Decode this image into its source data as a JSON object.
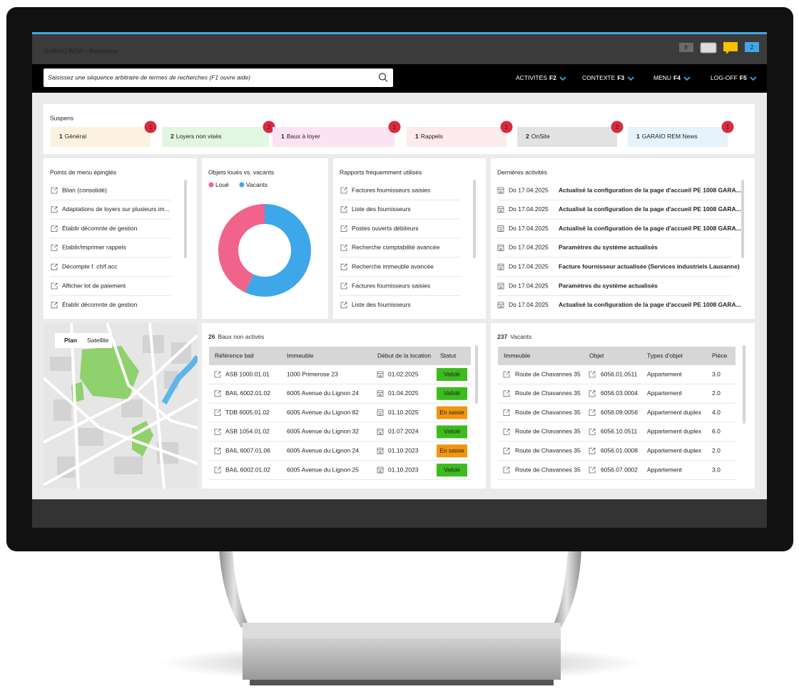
{
  "header": {
    "title": "GARAIO REM – Bienvenue",
    "language": "fr",
    "notifications": "2"
  },
  "search": {
    "placeholder": "Saisissez une séquence arbitraire de termes de recherches (F1 ouvre aide)"
  },
  "menu": [
    {
      "label": "ACTIVITÉS",
      "key": "F2"
    },
    {
      "label": "CONTEXTE",
      "key": "F3"
    },
    {
      "label": "MENU",
      "key": "F4"
    },
    {
      "label": "LOG-OFF",
      "key": "F5"
    }
  ],
  "suspens": {
    "title": "Suspens",
    "items": [
      {
        "count": "1",
        "label": "Général",
        "badge": "1",
        "color": "#fdf2df"
      },
      {
        "count": "2",
        "label": "Loyers non visés",
        "badge": "2",
        "color": "#e2f6e1"
      },
      {
        "count": "1",
        "label": "Baux à loyer",
        "badge": "1",
        "color": "#fce3f2"
      },
      {
        "count": "1",
        "label": "Rappels",
        "badge": "1",
        "color": "#fdeaec"
      },
      {
        "count": "2",
        "label": "OnSite",
        "badge": "2",
        "color": "#e2e2e2"
      },
      {
        "count": "1",
        "label": "GARAIO REM News",
        "badge": "1",
        "color": "#e6f2fc"
      }
    ]
  },
  "pinned": {
    "title": "Points de menu épinglés",
    "items": [
      "Bilan (consolidé)",
      "Adaptations de loyers sur plusieurs im...",
      "Établir décomnte de gestion",
      "Etablir/imprimer rappels",
      "Décompte f. ch/f.acc",
      "Afficher lot de paiement",
      "Établir décomnte de gestion"
    ]
  },
  "chart_data": {
    "type": "donut",
    "title": "Objets loués vs. vacants",
    "categories": [
      "Loué",
      "Vacants"
    ],
    "values": [
      43,
      57
    ],
    "colors": [
      "#f2638b",
      "#3ea7e9"
    ]
  },
  "reports": {
    "title": "Rapports fréquemment utilisés",
    "items": [
      "Factures fournisseurs saisies",
      "Liste des fournisseurs",
      "Postes ouverts débiteurs",
      "Recherche comptabilité avancée",
      "Recherche immeuble avancée",
      "Factures fournisseurs saisies",
      "Liste des fournisseurs"
    ]
  },
  "activities": {
    "title": "Dernières activités",
    "items": [
      {
        "date": "Do 17.04.2025",
        "text": "Actualisé la configuration de la page d'accueil PE 1008 GARA..."
      },
      {
        "date": "Do 17.04.2025",
        "text": "Actualisé la configuration de la page d'accueil PE 1008 GARA..."
      },
      {
        "date": "Do 17.04.2025",
        "text": "Actualisé la configuration de la page d'accueil PE 1008 GARA..."
      },
      {
        "date": "Do 17.04.2025",
        "text": "Paramètres du système actualisés"
      },
      {
        "date": "Do 17.04.2025",
        "text": "Facture fournisseur actualisée (Services industriels Lausanne)"
      },
      {
        "date": "Do 17.04.2025",
        "text": "Paramètres du système actualisés"
      },
      {
        "date": "Do 17.04.2025",
        "text": "Actualisé la configuration de la page d'accueil PE 1008 GARA..."
      }
    ]
  },
  "map": {
    "tabs": [
      "Plan",
      "Satellite"
    ]
  },
  "leases": {
    "count": "26",
    "title": "Baux non activés",
    "columns": [
      "Référence bail",
      "Immeuble",
      "Début de la location",
      "Statut"
    ],
    "rows": [
      {
        "ref": "ASB 1000.01.01",
        "building": "1000 Primerose 23",
        "date": "01.02.2025",
        "status": "Validé",
        "status_color": "#3dbb1f"
      },
      {
        "ref": "BAIL 6002.01.02",
        "building": "6005 Avenue du Lignon 24",
        "date": "01.04.2025",
        "status": "Validé",
        "status_color": "#3dbb1f"
      },
      {
        "ref": "TDB 6005.01.02",
        "building": "6005 Avenue du Lignon 82",
        "date": "01.10.2025",
        "status": "En saisie",
        "status_color": "#f2950f"
      },
      {
        "ref": "ASB 1054.01.02",
        "building": "6005 Avenue du Lignon 32",
        "date": "01.07.2024",
        "status": "Validé",
        "status_color": "#3dbb1f"
      },
      {
        "ref": "BAIL 6007.01.06",
        "building": "6005 Avenue du Lignon 24",
        "date": "01.10.2023",
        "status": "En saisie",
        "status_color": "#f2950f"
      },
      {
        "ref": "BAIL 6002.01.02",
        "building": "6005 Avenue du Lignon 25",
        "date": "01.10.2023",
        "status": "Validé",
        "status_color": "#3dbb1f"
      }
    ]
  },
  "vacants": {
    "count": "237",
    "title": "Vacants",
    "columns": [
      "Immeuble",
      "Objet",
      "Types d'objet",
      "Pièce"
    ],
    "rows": [
      {
        "building": "Route de Chavannes 35",
        "object": "6056.01.0511",
        "type": "Appartement",
        "rooms": "3.0"
      },
      {
        "building": "Route de Chavannes 35",
        "object": "6056.03.0004",
        "type": "Appartement",
        "rooms": "2.0"
      },
      {
        "building": "Route de Chavannes 35",
        "object": "6056.09.0056",
        "type": "Appartement duplex",
        "rooms": "4.0"
      },
      {
        "building": "Route de Chavannes 35",
        "object": "6056.10.0511",
        "type": "Appartement duplex",
        "rooms": "6.0"
      },
      {
        "building": "Route de Chavannes 35",
        "object": "6056.01.0008",
        "type": "Appartement duplex",
        "rooms": "2.0"
      },
      {
        "building": "Route de Chavannes 35",
        "object": "6056.07.0002",
        "type": "Appartement",
        "rooms": "3.0"
      }
    ]
  }
}
